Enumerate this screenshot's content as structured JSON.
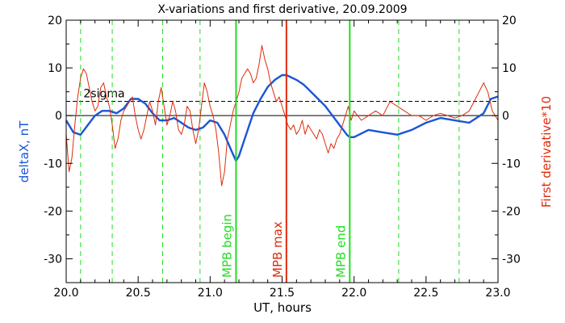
{
  "chart_data": {
    "type": "line",
    "title": "X-variations and first derivative, 20.09.2009",
    "xlabel": "UT, hours",
    "ylabel_left": "deltaX, nT",
    "ylabel_right": "First derivative*10",
    "xlim": [
      20.0,
      23.0
    ],
    "ylim": [
      -35,
      20
    ],
    "xticks": [
      "20.0",
      "20.5",
      "21.0",
      "21.5",
      "22.0",
      "22.5",
      "23.0"
    ],
    "yticks": [
      "20",
      "10",
      "0",
      "-10",
      "-20",
      "-30"
    ],
    "threshold": {
      "label": "2sigma",
      "value": 3
    },
    "colors": {
      "deltaX": "#1a55d6",
      "derivative": "#e02b0c",
      "markers": "#22dd22",
      "mpb_max": "#e02b0c",
      "axis": "#000000"
    },
    "dashed_lines_x": [
      20.1,
      20.32,
      20.67,
      20.93,
      22.31,
      22.73
    ],
    "markers": [
      {
        "label": "MPB begin",
        "x": 21.18,
        "color": "#22dd22"
      },
      {
        "label": "MPB max",
        "x": 21.53,
        "color": "#e02b0c"
      },
      {
        "label": "MPB end",
        "x": 21.97,
        "color": "#22dd22"
      }
    ],
    "series": [
      {
        "key": "deltaX",
        "x": [
          20.0,
          20.05,
          20.1,
          20.15,
          20.2,
          20.25,
          20.3,
          20.35,
          20.4,
          20.45,
          20.5,
          20.55,
          20.6,
          20.65,
          20.7,
          20.75,
          20.8,
          20.85,
          20.9,
          20.95,
          21.0,
          21.05,
          21.1,
          21.15,
          21.18,
          21.2,
          21.25,
          21.3,
          21.35,
          21.4,
          21.45,
          21.5,
          21.53,
          21.6,
          21.65,
          21.7,
          21.75,
          21.8,
          21.85,
          21.9,
          21.95,
          21.97,
          22.0,
          22.1,
          22.2,
          22.3,
          22.4,
          22.5,
          22.6,
          22.7,
          22.8,
          22.9,
          22.95,
          23.0
        ],
        "values": [
          -1,
          -3.5,
          -4,
          -2,
          0,
          1,
          1,
          0.5,
          1.5,
          3.5,
          3.5,
          2.5,
          0.5,
          -1,
          -1,
          -0.5,
          -1.5,
          -2.5,
          -3,
          -2.5,
          -1,
          -1.5,
          -4,
          -7.5,
          -9.5,
          -8.5,
          -4,
          0.5,
          3.5,
          6,
          7.5,
          8.5,
          8.5,
          7.5,
          6.5,
          5,
          3.5,
          2,
          0,
          -2,
          -4,
          -4.5,
          -4.5,
          -3,
          -3.5,
          -4,
          -3,
          -1.5,
          -0.5,
          -1,
          -1.5,
          0.5,
          3.5,
          4
        ]
      },
      {
        "key": "derivative",
        "x": [
          20.0,
          20.02,
          20.04,
          20.06,
          20.08,
          20.1,
          20.12,
          20.14,
          20.16,
          20.18,
          20.2,
          20.22,
          20.24,
          20.26,
          20.28,
          20.3,
          20.32,
          20.34,
          20.36,
          20.38,
          20.4,
          20.42,
          20.44,
          20.46,
          20.48,
          20.5,
          20.52,
          20.54,
          20.56,
          20.58,
          20.6,
          20.62,
          20.64,
          20.66,
          20.68,
          20.7,
          20.72,
          20.74,
          20.76,
          20.78,
          20.8,
          20.82,
          20.84,
          20.86,
          20.88,
          20.9,
          20.92,
          20.94,
          20.96,
          20.98,
          21.0,
          21.02,
          21.04,
          21.06,
          21.08,
          21.1,
          21.12,
          21.14,
          21.16,
          21.18,
          21.2,
          21.22,
          21.24,
          21.26,
          21.28,
          21.3,
          21.32,
          21.34,
          21.36,
          21.38,
          21.4,
          21.42,
          21.44,
          21.46,
          21.48,
          21.5,
          21.52,
          21.54,
          21.56,
          21.58,
          21.6,
          21.62,
          21.64,
          21.66,
          21.68,
          21.7,
          21.72,
          21.74,
          21.76,
          21.78,
          21.8,
          21.82,
          21.84,
          21.86,
          21.88,
          21.9,
          21.92,
          21.94,
          21.96,
          21.98,
          22.0,
          22.05,
          22.1,
          22.15,
          22.2,
          22.25,
          22.3,
          22.35,
          22.4,
          22.45,
          22.5,
          22.55,
          22.6,
          22.65,
          22.7,
          22.75,
          22.8,
          22.85,
          22.9,
          22.93,
          22.96,
          23.0
        ],
        "values": [
          -4,
          -12,
          -9,
          -2,
          4,
          8,
          10,
          9,
          6,
          3,
          1,
          2,
          6,
          7,
          4,
          2,
          -2,
          -7,
          -5,
          -1,
          1,
          2,
          3,
          4,
          0,
          -3,
          -5,
          -3,
          0,
          3,
          1,
          -2,
          3,
          6,
          2,
          -2,
          0,
          3,
          1,
          -3,
          -4,
          -2,
          2,
          1,
          -3,
          -6,
          -3,
          2,
          7,
          5,
          2,
          0,
          -3,
          -8,
          -15,
          -12,
          -5,
          -2,
          1,
          3,
          5,
          8,
          9,
          10,
          9,
          7,
          8,
          11,
          15,
          12,
          10,
          7,
          5,
          3,
          4,
          2,
          0,
          -2,
          -3,
          -2,
          -4,
          -3,
          -1,
          -4,
          -2,
          -3,
          -4,
          -5,
          -3,
          -4,
          -6,
          -8,
          -6,
          -7,
          -5,
          -4,
          -2,
          0,
          2,
          -1,
          1,
          -1,
          0,
          1,
          0,
          3,
          2,
          1,
          0,
          0,
          -1,
          0,
          0.5,
          0,
          -0.5,
          0,
          1,
          4,
          7,
          5,
          1,
          -1
        ]
      }
    ],
    "grid": false
  }
}
